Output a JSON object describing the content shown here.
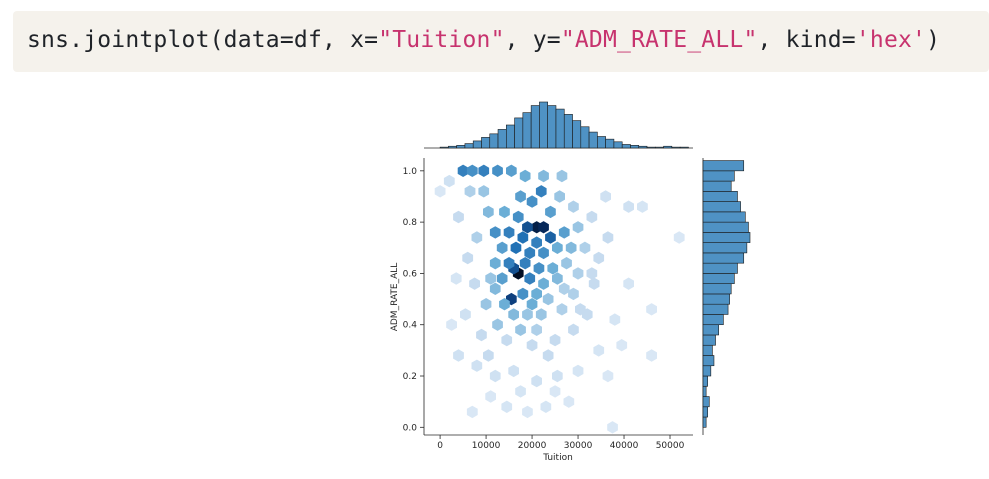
{
  "code": {
    "prefix": "sns.jointplot(data=df, x=",
    "x_str": "\"Tuition\"",
    "sep": ", y=",
    "y_str": "\"ADM_RATE_ALL\"",
    "sep2": ", kind=",
    "kind_str": "'hex'",
    "suffix": ")"
  },
  "chart_data": {
    "type": "heatmap",
    "subtype": "hexbin jointplot with marginal histograms",
    "xlabel": "Tuition",
    "ylabel": "ADM_RATE_ALL",
    "xlim": [
      -3500,
      55000
    ],
    "ylim": [
      -0.03,
      1.05
    ],
    "xticks": [
      0,
      10000,
      20000,
      30000,
      40000,
      50000
    ],
    "xtick_labels": [
      "0",
      "10000",
      "20000",
      "30000",
      "40000",
      "50000"
    ],
    "yticks": [
      0.0,
      0.2,
      0.4,
      0.6,
      0.8,
      1.0
    ],
    "ytick_labels": [
      "0.0",
      "0.2",
      "0.4",
      "0.6",
      "0.8",
      "1.0"
    ],
    "color": "#1f77b4",
    "hex_cells": [
      {
        "x": 17000,
        "y": 0.6,
        "d": 1.0
      },
      {
        "x": 21000,
        "y": 0.78,
        "d": 0.9
      },
      {
        "x": 22500,
        "y": 0.78,
        "d": 0.85
      },
      {
        "x": 15500,
        "y": 0.5,
        "d": 0.75
      },
      {
        "x": 19000,
        "y": 0.78,
        "d": 0.7
      },
      {
        "x": 16000,
        "y": 0.62,
        "d": 0.7
      },
      {
        "x": 5000,
        "y": 1.0,
        "d": 0.55
      },
      {
        "x": 7000,
        "y": 1.0,
        "d": 0.5
      },
      {
        "x": 9500,
        "y": 1.0,
        "d": 0.55
      },
      {
        "x": 12500,
        "y": 1.0,
        "d": 0.5
      },
      {
        "x": 15500,
        "y": 1.0,
        "d": 0.45
      },
      {
        "x": 18500,
        "y": 0.98,
        "d": 0.4
      },
      {
        "x": 22500,
        "y": 0.98,
        "d": 0.35
      },
      {
        "x": 26500,
        "y": 0.98,
        "d": 0.3
      },
      {
        "x": 20000,
        "y": 0.88,
        "d": 0.5
      },
      {
        "x": 22000,
        "y": 0.92,
        "d": 0.55
      },
      {
        "x": 17500,
        "y": 0.9,
        "d": 0.45
      },
      {
        "x": 14000,
        "y": 0.84,
        "d": 0.4
      },
      {
        "x": 17000,
        "y": 0.82,
        "d": 0.5
      },
      {
        "x": 24000,
        "y": 0.84,
        "d": 0.45
      },
      {
        "x": 12000,
        "y": 0.76,
        "d": 0.5
      },
      {
        "x": 15000,
        "y": 0.76,
        "d": 0.55
      },
      {
        "x": 18000,
        "y": 0.74,
        "d": 0.6
      },
      {
        "x": 24000,
        "y": 0.74,
        "d": 0.65
      },
      {
        "x": 21000,
        "y": 0.72,
        "d": 0.55
      },
      {
        "x": 27000,
        "y": 0.76,
        "d": 0.45
      },
      {
        "x": 30000,
        "y": 0.78,
        "d": 0.3
      },
      {
        "x": 13500,
        "y": 0.7,
        "d": 0.45
      },
      {
        "x": 16500,
        "y": 0.7,
        "d": 0.6
      },
      {
        "x": 19500,
        "y": 0.68,
        "d": 0.55
      },
      {
        "x": 22500,
        "y": 0.68,
        "d": 0.5
      },
      {
        "x": 25500,
        "y": 0.7,
        "d": 0.4
      },
      {
        "x": 28500,
        "y": 0.7,
        "d": 0.35
      },
      {
        "x": 12000,
        "y": 0.64,
        "d": 0.4
      },
      {
        "x": 15000,
        "y": 0.64,
        "d": 0.55
      },
      {
        "x": 18500,
        "y": 0.64,
        "d": 0.55
      },
      {
        "x": 21500,
        "y": 0.62,
        "d": 0.5
      },
      {
        "x": 24500,
        "y": 0.62,
        "d": 0.4
      },
      {
        "x": 27500,
        "y": 0.64,
        "d": 0.3
      },
      {
        "x": 13500,
        "y": 0.58,
        "d": 0.45
      },
      {
        "x": 19500,
        "y": 0.58,
        "d": 0.55
      },
      {
        "x": 22500,
        "y": 0.56,
        "d": 0.4
      },
      {
        "x": 25500,
        "y": 0.58,
        "d": 0.35
      },
      {
        "x": 12000,
        "y": 0.54,
        "d": 0.35
      },
      {
        "x": 18000,
        "y": 0.52,
        "d": 0.5
      },
      {
        "x": 21000,
        "y": 0.52,
        "d": 0.4
      },
      {
        "x": 14000,
        "y": 0.48,
        "d": 0.4
      },
      {
        "x": 20000,
        "y": 0.48,
        "d": 0.4
      },
      {
        "x": 23500,
        "y": 0.5,
        "d": 0.3
      },
      {
        "x": 10000,
        "y": 0.48,
        "d": 0.3
      },
      {
        "x": 16000,
        "y": 0.44,
        "d": 0.35
      },
      {
        "x": 19000,
        "y": 0.44,
        "d": 0.3
      },
      {
        "x": 22000,
        "y": 0.44,
        "d": 0.3
      },
      {
        "x": 26500,
        "y": 0.46,
        "d": 0.25
      },
      {
        "x": 12500,
        "y": 0.4,
        "d": 0.3
      },
      {
        "x": 17500,
        "y": 0.38,
        "d": 0.3
      },
      {
        "x": 21000,
        "y": 0.38,
        "d": 0.25
      },
      {
        "x": 14500,
        "y": 0.34,
        "d": 0.2
      },
      {
        "x": 20000,
        "y": 0.32,
        "d": 0.2
      },
      {
        "x": 25000,
        "y": 0.34,
        "d": 0.2
      },
      {
        "x": 9000,
        "y": 0.36,
        "d": 0.2
      },
      {
        "x": 29000,
        "y": 0.38,
        "d": 0.2
      },
      {
        "x": 32000,
        "y": 0.44,
        "d": 0.2
      },
      {
        "x": 33500,
        "y": 0.56,
        "d": 0.2
      },
      {
        "x": 34500,
        "y": 0.66,
        "d": 0.2
      },
      {
        "x": 36500,
        "y": 0.74,
        "d": 0.2
      },
      {
        "x": 31500,
        "y": 0.7,
        "d": 0.25
      },
      {
        "x": 30000,
        "y": 0.6,
        "d": 0.25
      },
      {
        "x": 29000,
        "y": 0.52,
        "d": 0.25
      },
      {
        "x": 6500,
        "y": 0.92,
        "d": 0.25
      },
      {
        "x": 9500,
        "y": 0.92,
        "d": 0.3
      },
      {
        "x": 4000,
        "y": 0.82,
        "d": 0.2
      },
      {
        "x": 8000,
        "y": 0.74,
        "d": 0.25
      },
      {
        "x": 6000,
        "y": 0.66,
        "d": 0.2
      },
      {
        "x": 7500,
        "y": 0.56,
        "d": 0.2
      },
      {
        "x": 5500,
        "y": 0.44,
        "d": 0.15
      },
      {
        "x": 4000,
        "y": 0.28,
        "d": 0.15
      },
      {
        "x": 8000,
        "y": 0.24,
        "d": 0.15
      },
      {
        "x": 12000,
        "y": 0.2,
        "d": 0.15
      },
      {
        "x": 16000,
        "y": 0.22,
        "d": 0.15
      },
      {
        "x": 21000,
        "y": 0.18,
        "d": 0.15
      },
      {
        "x": 25500,
        "y": 0.2,
        "d": 0.15
      },
      {
        "x": 30000,
        "y": 0.22,
        "d": 0.12
      },
      {
        "x": 34500,
        "y": 0.3,
        "d": 0.12
      },
      {
        "x": 38000,
        "y": 0.42,
        "d": 0.12
      },
      {
        "x": 41000,
        "y": 0.56,
        "d": 0.12
      },
      {
        "x": 41000,
        "y": 0.86,
        "d": 0.15
      },
      {
        "x": 44000,
        "y": 0.86,
        "d": 0.12
      },
      {
        "x": 46000,
        "y": 0.46,
        "d": 0.1
      },
      {
        "x": 52000,
        "y": 0.74,
        "d": 0.1
      },
      {
        "x": 46000,
        "y": 0.28,
        "d": 0.1
      },
      {
        "x": 39500,
        "y": 0.32,
        "d": 0.1
      },
      {
        "x": 36500,
        "y": 0.2,
        "d": 0.1
      },
      {
        "x": 7000,
        "y": 0.06,
        "d": 0.1
      },
      {
        "x": 14500,
        "y": 0.08,
        "d": 0.12
      },
      {
        "x": 19000,
        "y": 0.06,
        "d": 0.1
      },
      {
        "x": 23000,
        "y": 0.08,
        "d": 0.12
      },
      {
        "x": 28000,
        "y": 0.1,
        "d": 0.1
      },
      {
        "x": 37500,
        "y": 0.0,
        "d": 0.1
      },
      {
        "x": 2000,
        "y": 0.96,
        "d": 0.15
      },
      {
        "x": 0,
        "y": 0.92,
        "d": 0.1
      },
      {
        "x": 3500,
        "y": 0.58,
        "d": 0.12
      },
      {
        "x": 2500,
        "y": 0.4,
        "d": 0.1
      },
      {
        "x": 26000,
        "y": 0.9,
        "d": 0.3
      },
      {
        "x": 29000,
        "y": 0.86,
        "d": 0.25
      },
      {
        "x": 33000,
        "y": 0.82,
        "d": 0.2
      },
      {
        "x": 36000,
        "y": 0.9,
        "d": 0.15
      },
      {
        "x": 10500,
        "y": 0.84,
        "d": 0.35
      },
      {
        "x": 11000,
        "y": 0.58,
        "d": 0.3
      },
      {
        "x": 27000,
        "y": 0.54,
        "d": 0.25
      },
      {
        "x": 30500,
        "y": 0.46,
        "d": 0.2
      },
      {
        "x": 10500,
        "y": 0.28,
        "d": 0.2
      },
      {
        "x": 23500,
        "y": 0.28,
        "d": 0.2
      },
      {
        "x": 33000,
        "y": 0.6,
        "d": 0.2
      },
      {
        "x": 17500,
        "y": 0.14,
        "d": 0.12
      },
      {
        "x": 11000,
        "y": 0.12,
        "d": 0.1
      },
      {
        "x": 25000,
        "y": 0.14,
        "d": 0.1
      }
    ],
    "marginal_x": {
      "bin_edges_start": 0,
      "bin_width": 1800,
      "counts": [
        1,
        2,
        3,
        5,
        8,
        12,
        16,
        21,
        26,
        34,
        40,
        48,
        52,
        48,
        44,
        38,
        31,
        24,
        18,
        13,
        10,
        7,
        4,
        3,
        2,
        1,
        1,
        2,
        1,
        1
      ]
    },
    "marginal_y": {
      "bin_edges_start": 0,
      "bin_width": 0.04,
      "counts": [
        2,
        3,
        4,
        2,
        3,
        5,
        7,
        6,
        8,
        10,
        13,
        16,
        17,
        18,
        20,
        22,
        26,
        28,
        30,
        29,
        27,
        24,
        22,
        18,
        20,
        26
      ]
    }
  }
}
